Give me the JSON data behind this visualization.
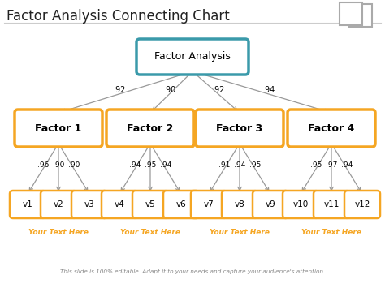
{
  "title": "Factor Analysis Connecting Chart",
  "bg_color": "#ffffff",
  "root_label": "Factor Analysis",
  "factor_labels": [
    "Factor 1",
    "Factor 2",
    "Factor 3",
    "Factor 4"
  ],
  "var_labels": [
    [
      "v1",
      "v2",
      "v3"
    ],
    [
      "v4",
      "v5",
      "v6"
    ],
    [
      "v7",
      "v8",
      "v9"
    ],
    [
      "v10",
      "v11",
      "v12"
    ]
  ],
  "root_to_factor_weights": [
    ".92",
    ".90",
    ".92",
    ".94"
  ],
  "factor_to_var_weights": [
    [
      ".96",
      ".90",
      ".90"
    ],
    [
      ".94",
      ".95",
      ".94"
    ],
    [
      ".91",
      ".94",
      ".95"
    ],
    [
      ".95",
      ".97",
      ".94"
    ]
  ],
  "footer_labels": [
    "Your Text Here",
    "Your Text Here",
    "Your Text Here",
    "Your Text Here"
  ],
  "bottom_text": "This slide is 100% editable. Adapt it to your needs and capture your audience's attention.",
  "teal_color": "#3a9aaa",
  "orange_color": "#f5a623",
  "gray_color": "#888888",
  "arrow_color": "#999999",
  "title_color": "#222222",
  "sep_color": "#cccccc",
  "sq_color": "#aaaaaa"
}
